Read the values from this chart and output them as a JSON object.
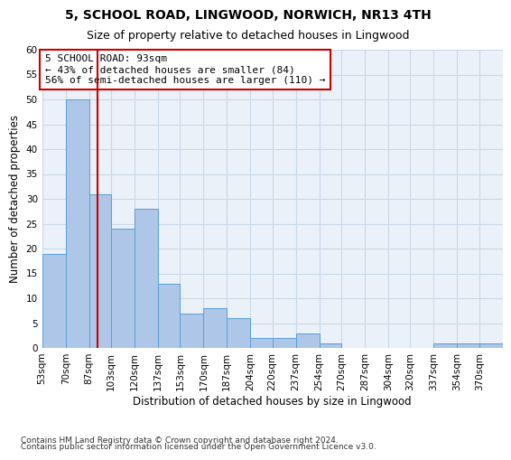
{
  "title": "5, SCHOOL ROAD, LINGWOOD, NORWICH, NR13 4TH",
  "subtitle": "Size of property relative to detached houses in Lingwood",
  "xlabel": "Distribution of detached houses by size in Lingwood",
  "ylabel": "Number of detached properties",
  "bar_edges": [
    53,
    70,
    87,
    103,
    120,
    137,
    153,
    170,
    187,
    204,
    220,
    237,
    254,
    270,
    287,
    304,
    320,
    337,
    354,
    370,
    387
  ],
  "bar_heights": [
    19,
    50,
    31,
    24,
    28,
    13,
    7,
    8,
    6,
    2,
    2,
    3,
    1,
    0,
    0,
    0,
    0,
    1,
    1,
    1
  ],
  "bar_color": "#aec6e8",
  "bar_edge_color": "#5a9fd4",
  "property_line_x": 93,
  "property_line_color": "#cc0000",
  "annotation_text": "5 SCHOOL ROAD: 93sqm\n← 43% of detached houses are smaller (84)\n56% of semi-detached houses are larger (110) →",
  "annotation_box_color": "#cc0000",
  "annotation_text_color": "#000000",
  "ylim": [
    0,
    60
  ],
  "yticks": [
    0,
    5,
    10,
    15,
    20,
    25,
    30,
    35,
    40,
    45,
    50,
    55,
    60
  ],
  "grid_color": "#c8d8e8",
  "background_color": "#eaf1f8",
  "footer_line1": "Contains HM Land Registry data © Crown copyright and database right 2024.",
  "footer_line2": "Contains public sector information licensed under the Open Government Licence v3.0.",
  "title_fontsize": 10,
  "subtitle_fontsize": 9,
  "xlabel_fontsize": 8.5,
  "ylabel_fontsize": 8.5,
  "tick_fontsize": 7.5,
  "annotation_fontsize": 8,
  "footer_fontsize": 6.5
}
